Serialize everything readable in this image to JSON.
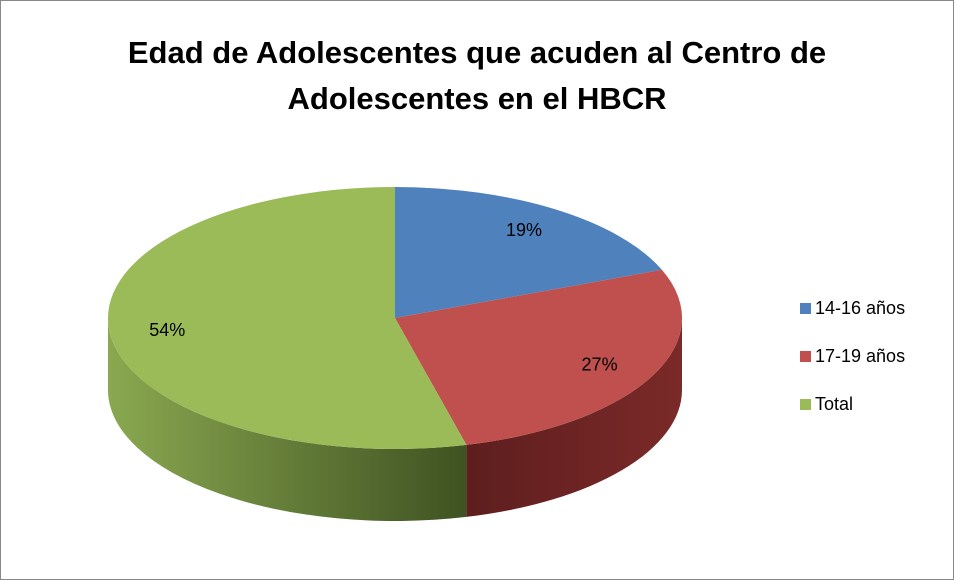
{
  "chart_data": {
    "type": "pie",
    "title": "Edad de Adolescentes que acuden al Centro de Adolescentes en el HBCR",
    "categories": [
      "14-16 años",
      "17-19 años",
      "Total"
    ],
    "values": [
      19,
      27,
      54
    ],
    "value_labels": [
      "19%",
      "27%",
      "54%"
    ],
    "colors": [
      "#4f81bd",
      "#c0504d",
      "#9bbb59"
    ],
    "legend": "right"
  }
}
